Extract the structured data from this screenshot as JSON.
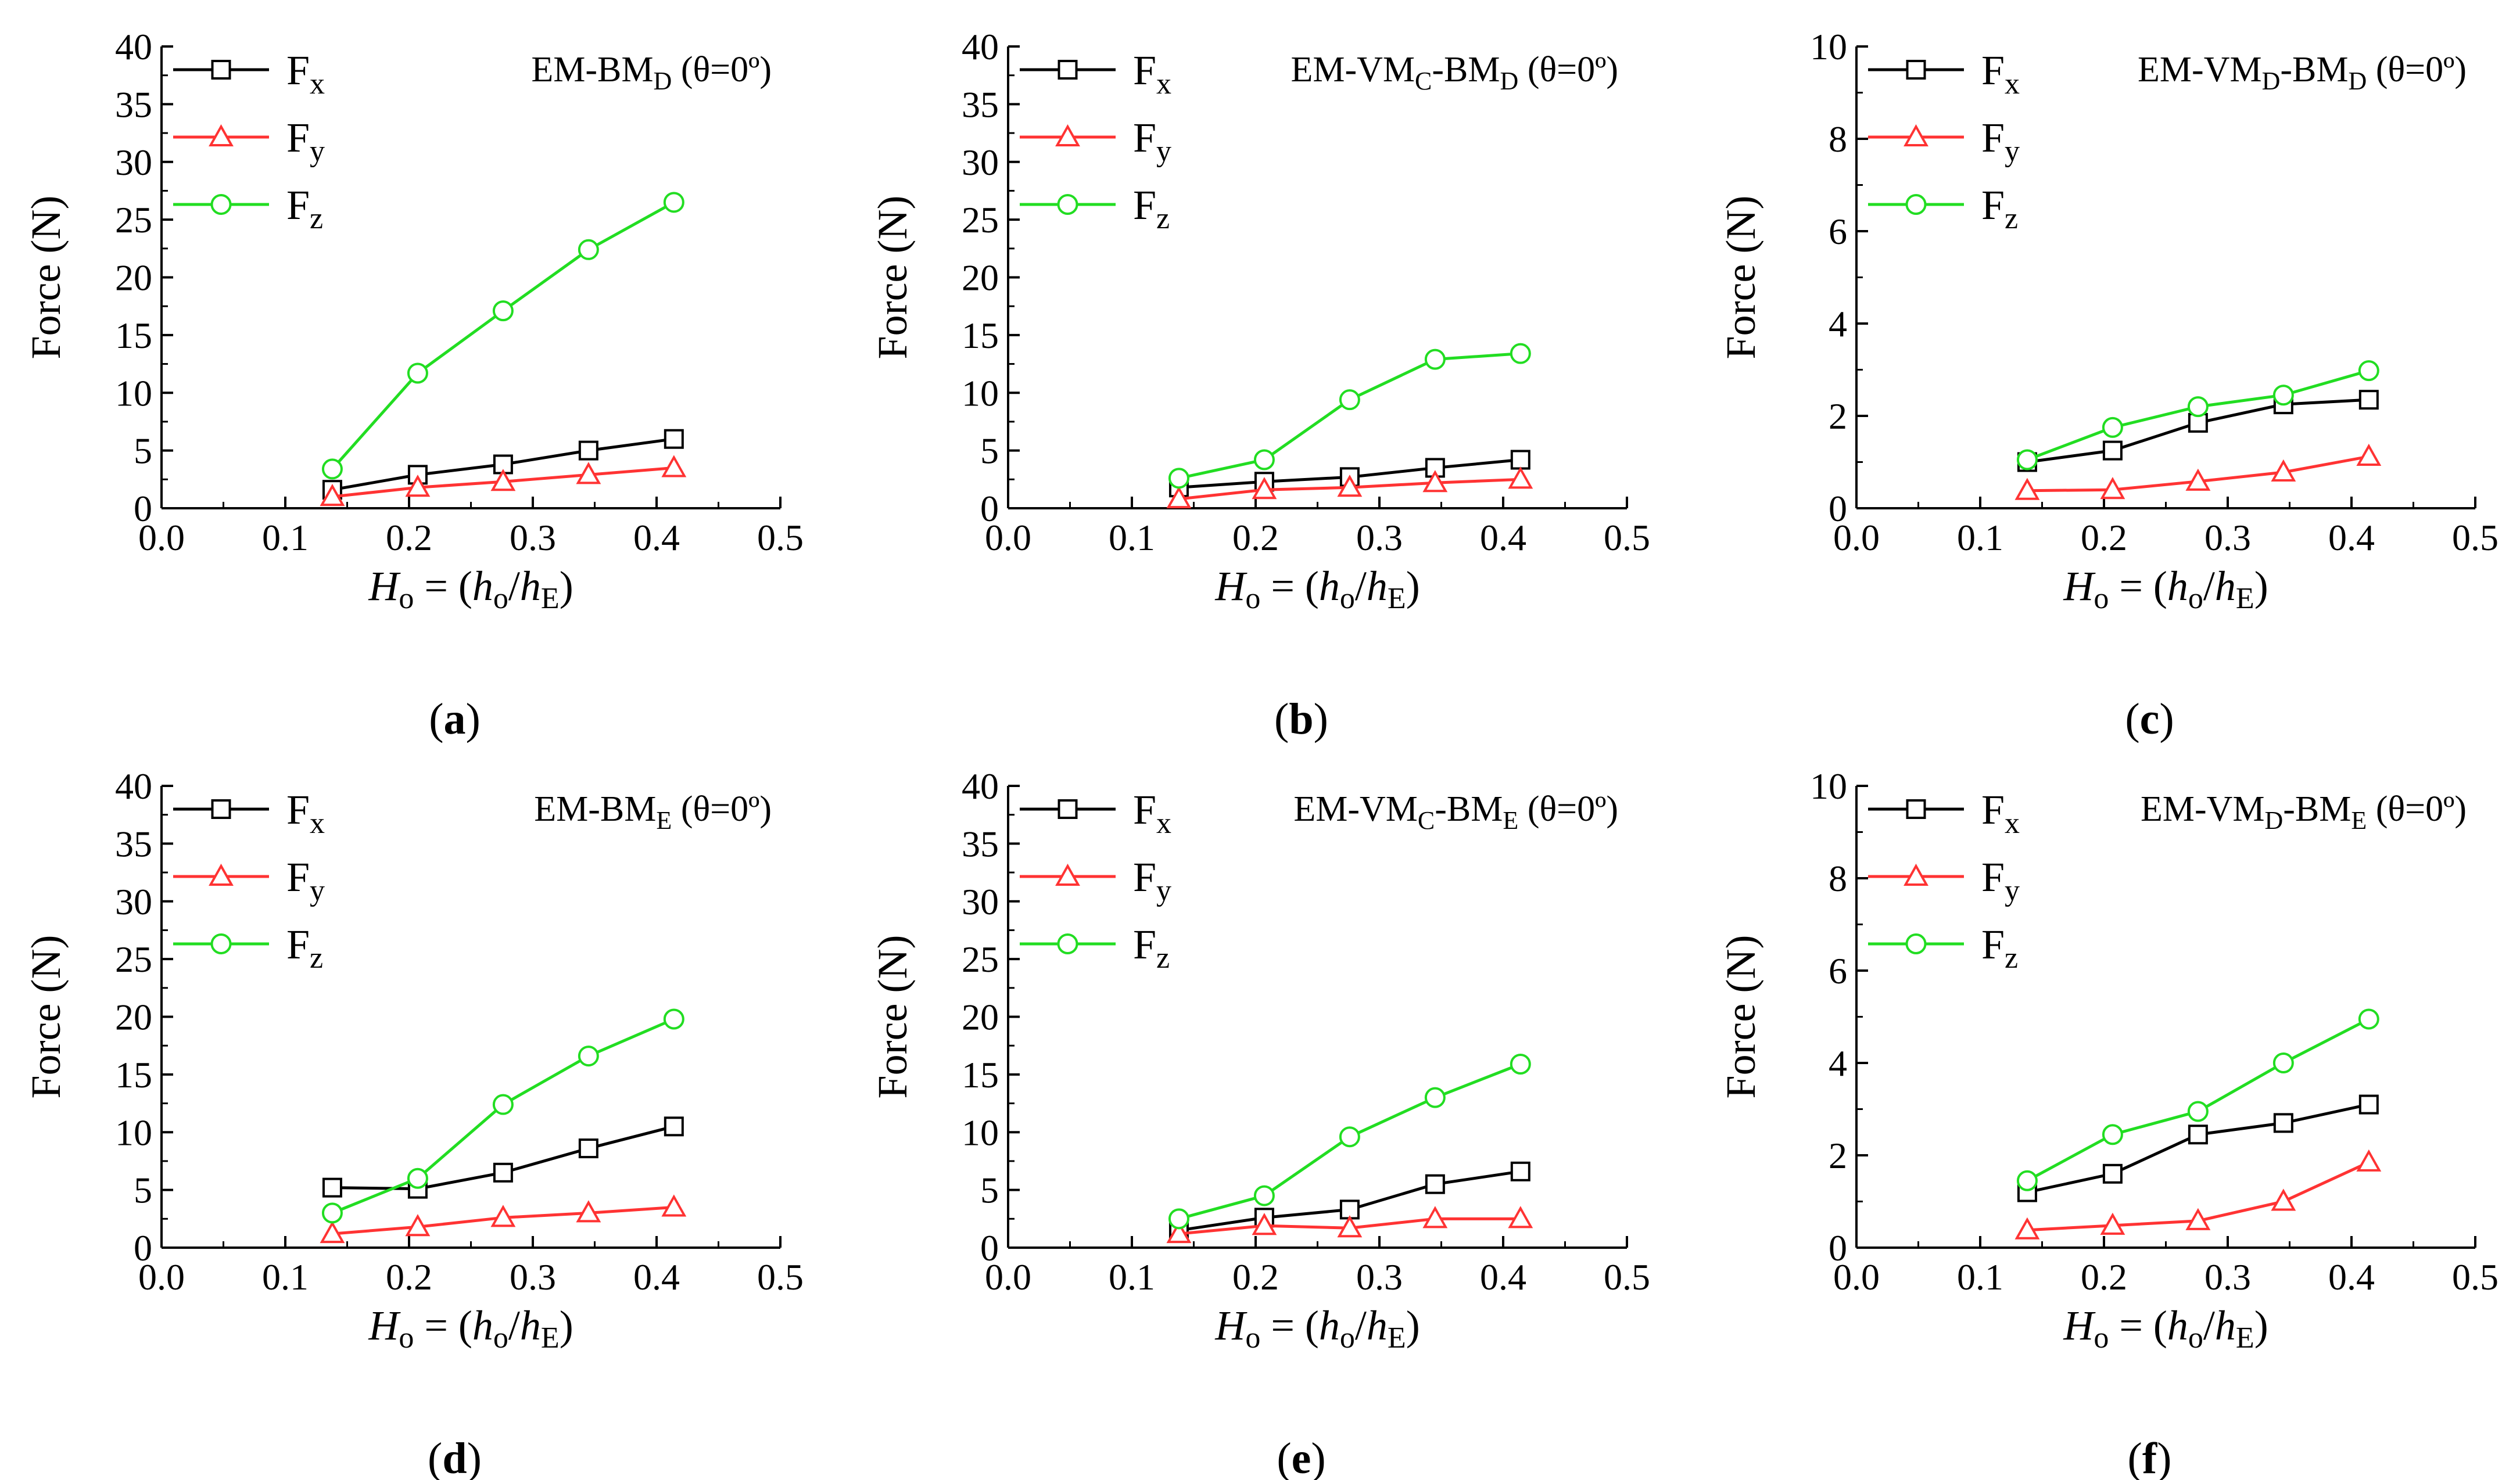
{
  "colors": {
    "Fx": "#000000",
    "Fy": "#ff3333",
    "Fz": "#22dd22",
    "axis": "#000000"
  },
  "chart_data": [
    {
      "type": "line",
      "panel": "a",
      "caption": "a",
      "title": {
        "base": "EM-BM",
        "sub": "D",
        "tail": " (θ=0º)"
      },
      "xlabel": {
        "H": "H",
        "Hsub": "o",
        "eq": " = (",
        "h": "h",
        "hsub": "o",
        "slash": "/",
        "h2": "h",
        "h2sub": "E",
        "close": ")"
      },
      "ylabel": "Force (N)",
      "xlim": [
        0.0,
        0.5
      ],
      "ylim": [
        0,
        40
      ],
      "xticks": [
        "0.0",
        "0.1",
        "0.2",
        "0.3",
        "0.4",
        "0.5"
      ],
      "yticks": [
        "0",
        "5",
        "10",
        "15",
        "20",
        "25",
        "30",
        "35",
        "40"
      ],
      "x": [
        0.138,
        0.207,
        0.276,
        0.345,
        0.414
      ],
      "series": [
        {
          "name": "F",
          "sub": "x",
          "key": "Fx",
          "marker": "square",
          "values": [
            1.6,
            2.9,
            3.8,
            5.0,
            6.0
          ]
        },
        {
          "name": "F",
          "sub": "y",
          "key": "Fy",
          "marker": "triangle",
          "values": [
            1.0,
            1.8,
            2.3,
            2.9,
            3.5
          ]
        },
        {
          "name": "F",
          "sub": "z",
          "key": "Fz",
          "marker": "circle",
          "values": [
            3.4,
            11.7,
            17.1,
            22.4,
            26.5
          ]
        }
      ]
    },
    {
      "type": "line",
      "panel": "b",
      "caption": "b",
      "title": {
        "base": "EM-VM",
        "sub": "C",
        "base2": "-BM",
        "sub2": "D",
        "tail": " (θ=0º)"
      },
      "xlabel": {
        "H": "H",
        "Hsub": "o",
        "eq": " = (",
        "h": "h",
        "hsub": "o",
        "slash": "/",
        "h2": "h",
        "h2sub": "E",
        "close": ")"
      },
      "ylabel": "Force (N)",
      "xlim": [
        0.0,
        0.5
      ],
      "ylim": [
        0,
        40
      ],
      "xticks": [
        "0.0",
        "0.1",
        "0.2",
        "0.3",
        "0.4",
        "0.5"
      ],
      "yticks": [
        "0",
        "5",
        "10",
        "15",
        "20",
        "25",
        "30",
        "35",
        "40"
      ],
      "x": [
        0.138,
        0.207,
        0.276,
        0.345,
        0.414
      ],
      "series": [
        {
          "name": "F",
          "sub": "x",
          "key": "Fx",
          "marker": "square",
          "values": [
            1.8,
            2.3,
            2.7,
            3.5,
            4.2
          ]
        },
        {
          "name": "F",
          "sub": "y",
          "key": "Fy",
          "marker": "triangle",
          "values": [
            0.8,
            1.6,
            1.8,
            2.2,
            2.5
          ]
        },
        {
          "name": "F",
          "sub": "z",
          "key": "Fz",
          "marker": "circle",
          "values": [
            2.6,
            4.2,
            9.4,
            12.9,
            13.4
          ]
        }
      ]
    },
    {
      "type": "line",
      "panel": "c",
      "caption": "c",
      "title": {
        "base": "EM-VM",
        "sub": "D",
        "base2": "-BM",
        "sub2": "D",
        "tail": " (θ=0º)"
      },
      "xlabel": {
        "H": "H",
        "Hsub": "o",
        "eq": " = (",
        "h": "h",
        "hsub": "o",
        "slash": "/",
        "h2": "h",
        "h2sub": "E",
        "close": ")"
      },
      "ylabel": "Force (N)",
      "xlim": [
        0.0,
        0.5
      ],
      "ylim": [
        0,
        10
      ],
      "xticks": [
        "0.0",
        "0.1",
        "0.2",
        "0.3",
        "0.4",
        "0.5"
      ],
      "yticks": [
        "0",
        "2",
        "4",
        "6",
        "8",
        "10"
      ],
      "x": [
        0.138,
        0.207,
        0.276,
        0.345,
        0.414
      ],
      "series": [
        {
          "name": "F",
          "sub": "x",
          "key": "Fx",
          "marker": "square",
          "values": [
            1.0,
            1.25,
            1.85,
            2.25,
            2.35
          ]
        },
        {
          "name": "F",
          "sub": "y",
          "key": "Fy",
          "marker": "triangle",
          "values": [
            0.38,
            0.4,
            0.58,
            0.78,
            1.12
          ]
        },
        {
          "name": "F",
          "sub": "z",
          "key": "Fz",
          "marker": "circle",
          "values": [
            1.05,
            1.75,
            2.2,
            2.45,
            2.98
          ]
        }
      ]
    },
    {
      "type": "line",
      "panel": "d",
      "caption": "d",
      "title": {
        "base": "EM-BM",
        "sub": "E",
        "tail": " (θ=0º)"
      },
      "xlabel": {
        "H": "H",
        "Hsub": "o",
        "eq": " = (",
        "h": "h",
        "hsub": "o",
        "slash": "/",
        "h2": "h",
        "h2sub": "E",
        "close": ")"
      },
      "ylabel": "Force (N)",
      "xlim": [
        0.0,
        0.5
      ],
      "ylim": [
        0,
        40
      ],
      "xticks": [
        "0.0",
        "0.1",
        "0.2",
        "0.3",
        "0.4",
        "0.5"
      ],
      "yticks": [
        "0",
        "5",
        "10",
        "15",
        "20",
        "25",
        "30",
        "35",
        "40"
      ],
      "x": [
        0.138,
        0.207,
        0.276,
        0.345,
        0.414
      ],
      "series": [
        {
          "name": "F",
          "sub": "x",
          "key": "Fx",
          "marker": "square",
          "values": [
            5.2,
            5.1,
            6.5,
            8.6,
            10.5
          ]
        },
        {
          "name": "F",
          "sub": "y",
          "key": "Fy",
          "marker": "triangle",
          "values": [
            1.2,
            1.8,
            2.6,
            3.0,
            3.5
          ]
        },
        {
          "name": "F",
          "sub": "z",
          "key": "Fz",
          "marker": "circle",
          "values": [
            3.0,
            6.0,
            12.4,
            16.6,
            19.8
          ]
        }
      ]
    },
    {
      "type": "line",
      "panel": "e",
      "caption": "e",
      "title": {
        "base": "EM-VM",
        "sub": "C",
        "base2": "-BM",
        "sub2": "E",
        "tail": " (θ=0º)"
      },
      "xlabel": {
        "H": "H",
        "Hsub": "o",
        "eq": " = (",
        "h": "h",
        "hsub": "o",
        "slash": "/",
        "h2": "h",
        "h2sub": "E",
        "close": ")"
      },
      "ylabel": "Force (N)",
      "xlim": [
        0.0,
        0.5
      ],
      "ylim": [
        0,
        40
      ],
      "xticks": [
        "0.0",
        "0.1",
        "0.2",
        "0.3",
        "0.4",
        "0.5"
      ],
      "yticks": [
        "0",
        "5",
        "10",
        "15",
        "20",
        "25",
        "30",
        "35",
        "40"
      ],
      "x": [
        0.138,
        0.207,
        0.276,
        0.345,
        0.414
      ],
      "series": [
        {
          "name": "F",
          "sub": "x",
          "key": "Fx",
          "marker": "square",
          "values": [
            1.5,
            2.6,
            3.3,
            5.5,
            6.6
          ]
        },
        {
          "name": "F",
          "sub": "y",
          "key": "Fy",
          "marker": "triangle",
          "values": [
            1.2,
            1.9,
            1.7,
            2.5,
            2.5
          ]
        },
        {
          "name": "F",
          "sub": "z",
          "key": "Fz",
          "marker": "circle",
          "values": [
            2.5,
            4.5,
            9.6,
            13.0,
            15.9
          ]
        }
      ]
    },
    {
      "type": "line",
      "panel": "f",
      "caption": "f",
      "title": {
        "base": "EM-VM",
        "sub": "D",
        "base2": "-BM",
        "sub2": "E",
        "tail": " (θ=0º)"
      },
      "xlabel": {
        "H": "H",
        "Hsub": "o",
        "eq": " = (",
        "h": "h",
        "hsub": "o",
        "slash": "/",
        "h2": "h",
        "h2sub": "E",
        "close": ")"
      },
      "ylabel": "Force (N)",
      "xlim": [
        0.0,
        0.5
      ],
      "ylim": [
        0,
        10
      ],
      "xticks": [
        "0.0",
        "0.1",
        "0.2",
        "0.3",
        "0.4",
        "0.5"
      ],
      "yticks": [
        "0",
        "2",
        "4",
        "6",
        "8",
        "10"
      ],
      "x": [
        0.138,
        0.207,
        0.276,
        0.345,
        0.414
      ],
      "series": [
        {
          "name": "F",
          "sub": "x",
          "key": "Fx",
          "marker": "square",
          "values": [
            1.2,
            1.6,
            2.45,
            2.7,
            3.1
          ]
        },
        {
          "name": "F",
          "sub": "y",
          "key": "Fy",
          "marker": "triangle",
          "values": [
            0.38,
            0.48,
            0.58,
            1.0,
            1.85
          ]
        },
        {
          "name": "F",
          "sub": "z",
          "key": "Fz",
          "marker": "circle",
          "values": [
            1.45,
            2.45,
            2.95,
            4.0,
            4.95
          ]
        }
      ]
    }
  ]
}
